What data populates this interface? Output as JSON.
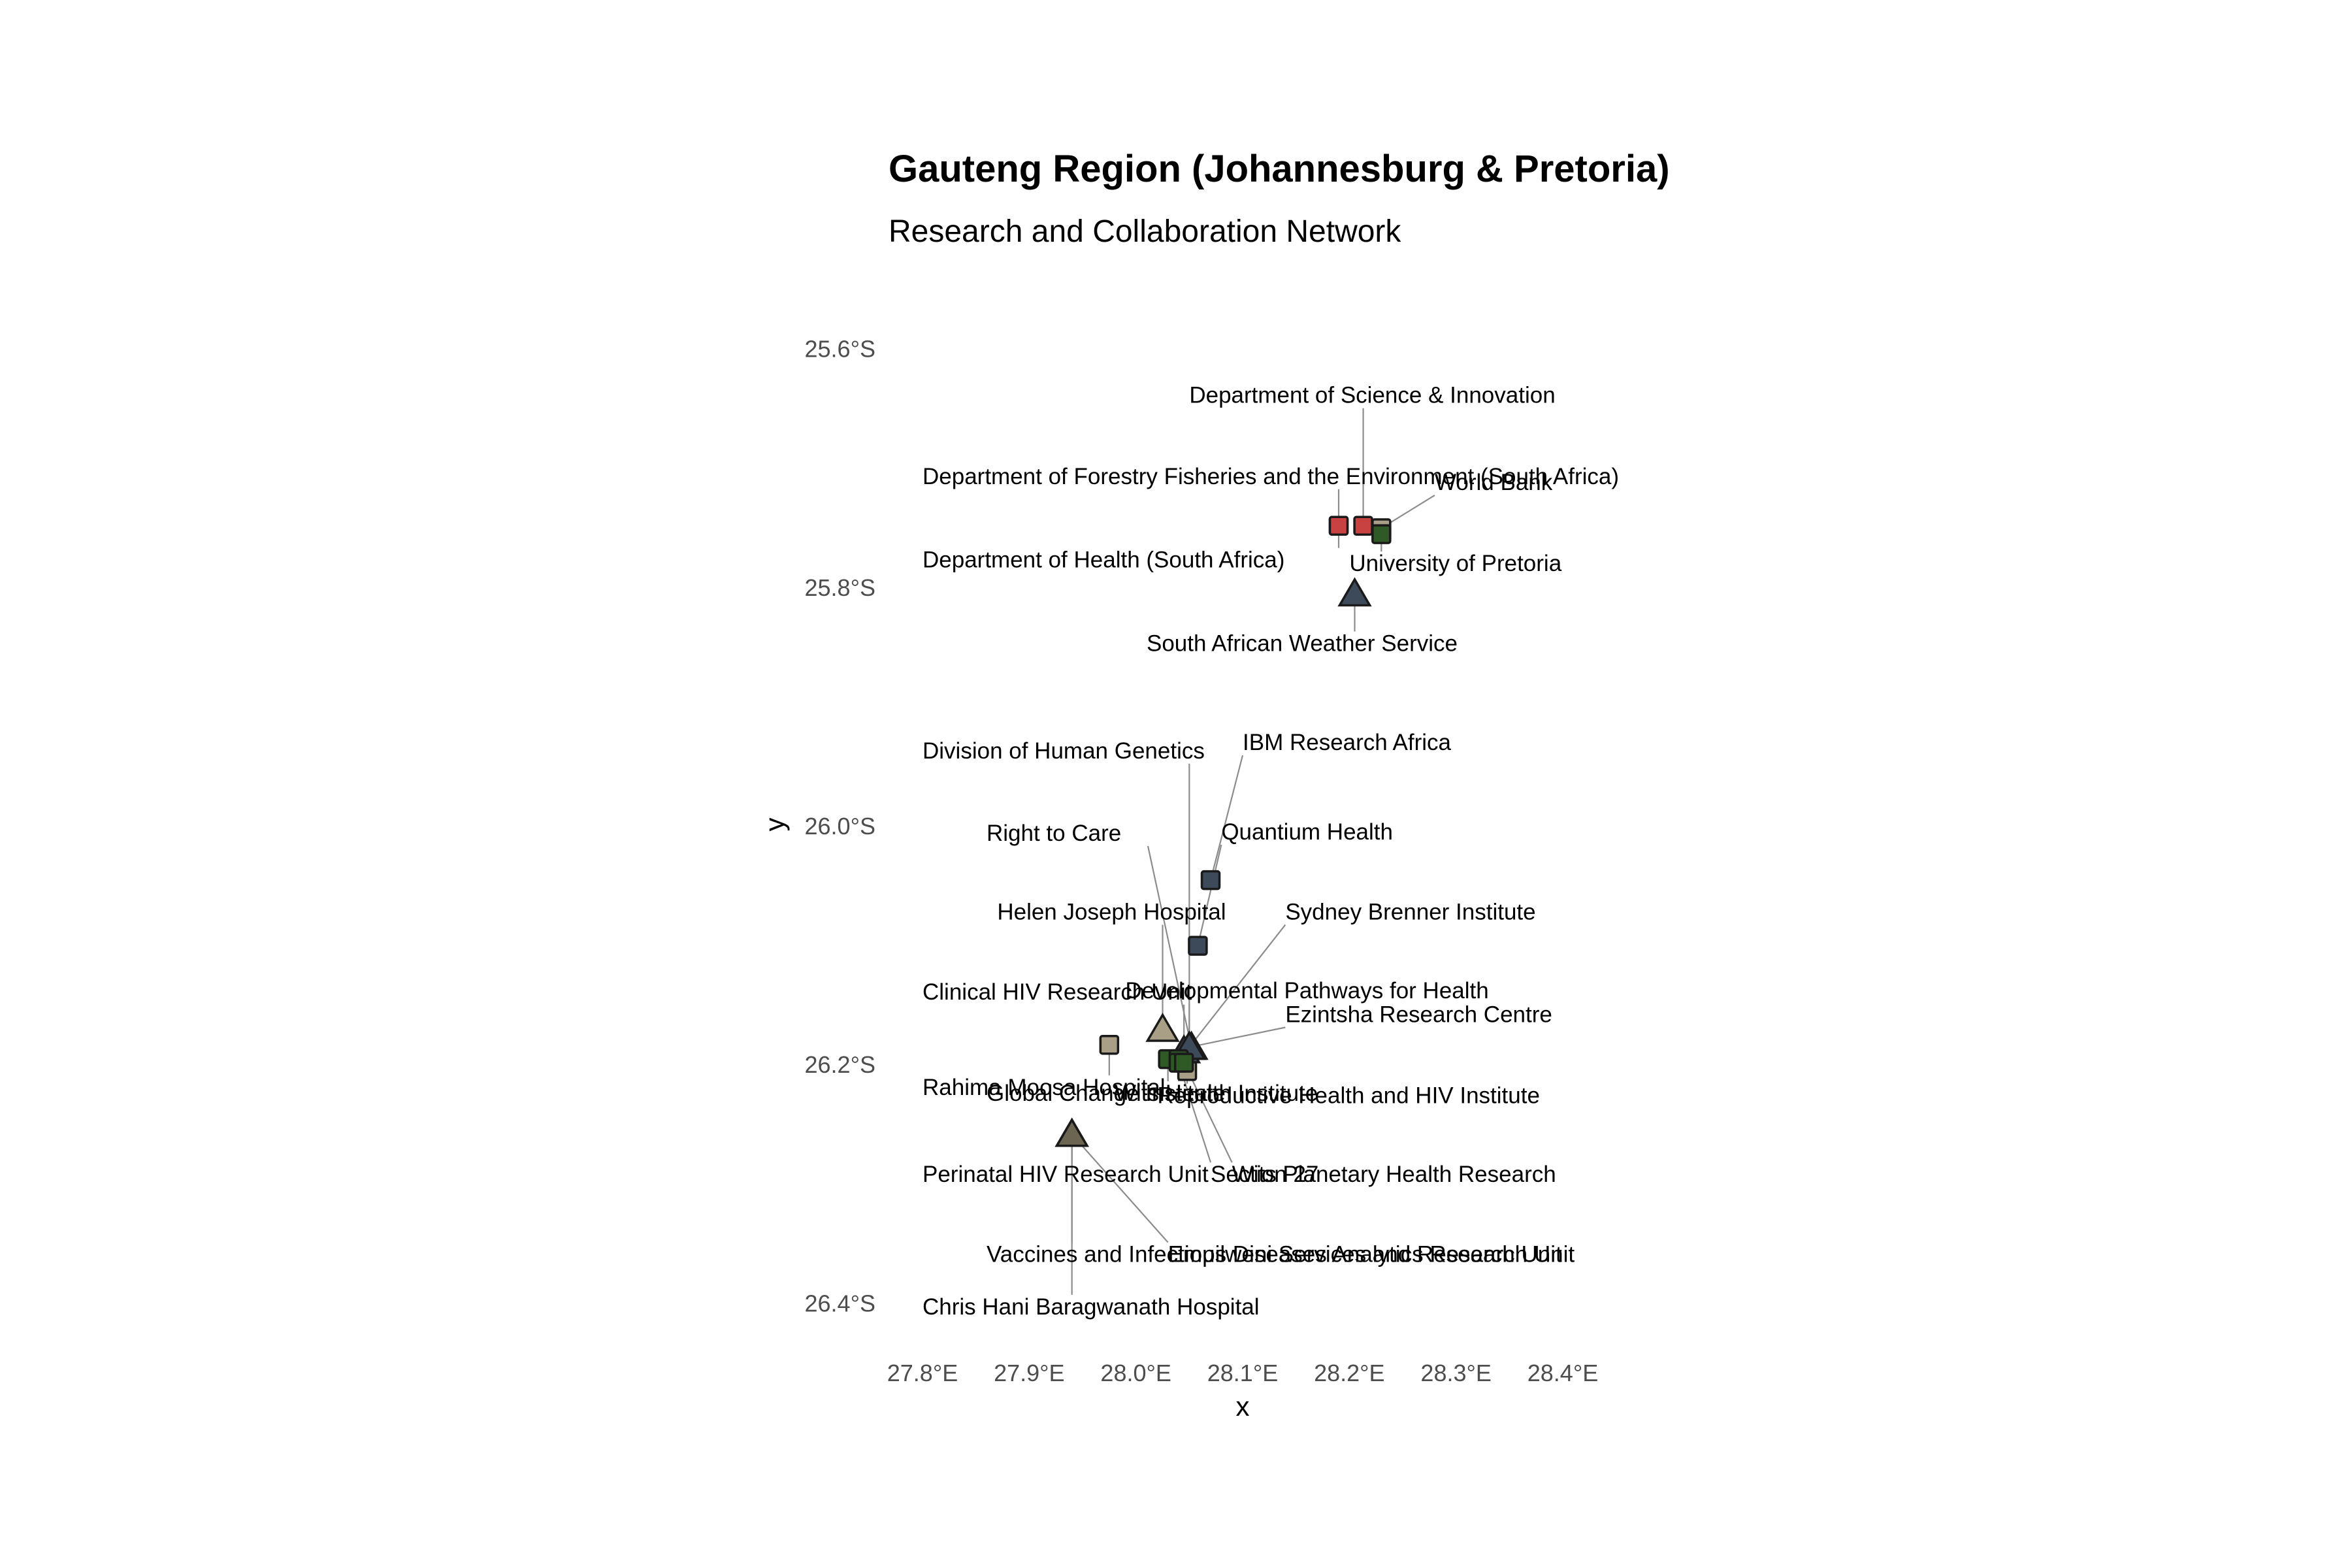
{
  "chart_data": {
    "type": "scatter",
    "title": "Gauteng Region (Johannesburg & Pretoria)",
    "subtitle": "Research and Collaboration Network",
    "xlabel": "x",
    "ylabel": "y",
    "xlim": [
      27.8,
      28.4
    ],
    "ylim": [
      -26.42,
      -25.58
    ],
    "x_ticks": [
      {
        "value": 27.8,
        "label": "27.8°E"
      },
      {
        "value": 27.9,
        "label": "27.9°E"
      },
      {
        "value": 28.0,
        "label": "28.0°E"
      },
      {
        "value": 28.1,
        "label": "28.1°E"
      },
      {
        "value": 28.2,
        "label": "28.2°E"
      },
      {
        "value": 28.3,
        "label": "28.3°E"
      },
      {
        "value": 28.4,
        "label": "28.4°E"
      }
    ],
    "y_ticks": [
      {
        "value": -25.6,
        "label": "25.6°S"
      },
      {
        "value": -25.8,
        "label": "25.8°S"
      },
      {
        "value": -26.0,
        "label": "26.0°S"
      },
      {
        "value": -26.2,
        "label": "26.2°S"
      },
      {
        "value": -26.4,
        "label": "26.4°S"
      }
    ],
    "grid": false,
    "legend": "none",
    "colors": {
      "red": "#c94242",
      "green": "#2f5a26",
      "khaki": "#a89f86",
      "slate": "#3d4a5a",
      "olive": "#6b6551"
    },
    "points": [
      {
        "name": "Department of Forestry Fisheries and the Environment (South Africa)",
        "x": 28.19,
        "y": -25.748,
        "shape": "square",
        "color": "#c94242",
        "label_x": 27.8,
        "label_y": -25.713
      },
      {
        "name": "Department of Science & Innovation",
        "x": 28.213,
        "y": -25.748,
        "shape": "square",
        "color": "#c94242",
        "label_x": 28.05,
        "label_y": -25.645
      },
      {
        "name": "Department of Health (South Africa)",
        "x": 28.19,
        "y": -25.748,
        "shape": "square",
        "color": "#c94242",
        "label_x": 27.8,
        "label_y": -25.783
      },
      {
        "name": "World Bank",
        "x": 28.23,
        "y": -25.75,
        "shape": "square",
        "color": "#a89f86",
        "label_x": 28.28,
        "label_y": -25.718
      },
      {
        "name": "University of Pretoria",
        "x": 28.23,
        "y": -25.755,
        "shape": "square",
        "color": "#2f5a26",
        "label_x": 28.2,
        "label_y": -25.786
      },
      {
        "name": "South African Weather Service",
        "x": 28.205,
        "y": -25.805,
        "shape": "triangle",
        "color": "#3d4a5a",
        "label_x": 28.01,
        "label_y": -25.853
      },
      {
        "name": "IBM Research Africa",
        "x": 28.07,
        "y": -26.045,
        "shape": "square",
        "color": "#3d4a5a",
        "label_x": 28.1,
        "label_y": -25.936
      },
      {
        "name": "Quantium Health",
        "x": 28.058,
        "y": -26.1,
        "shape": "square",
        "color": "#3d4a5a",
        "label_x": 28.08,
        "label_y": -26.011
      },
      {
        "name": "Division of Human Genetics",
        "x": 28.05,
        "y": -26.185,
        "shape": "triangle",
        "color": "#3d4a5a",
        "label_x": 27.8,
        "label_y": -25.943
      },
      {
        "name": "Right to Care",
        "x": 28.052,
        "y": -26.185,
        "shape": "triangle",
        "color": "#3d4a5a",
        "label_x": 27.86,
        "label_y": -26.012
      },
      {
        "name": "Helen Joseph Hospital",
        "x": 28.025,
        "y": -26.17,
        "shape": "triangle",
        "color": "#a89f86",
        "label_x": 27.87,
        "label_y": -26.078
      },
      {
        "name": "Sydney Brenner Institute",
        "x": 28.05,
        "y": -26.185,
        "shape": "triangle",
        "color": "#3d4a5a",
        "label_x": 28.14,
        "label_y": -26.078
      },
      {
        "name": "Developmental Pathways for Health",
        "x": 28.05,
        "y": -26.185,
        "shape": "triangle",
        "color": "#3d4a5a",
        "label_x": 27.99,
        "label_y": -26.144
      },
      {
        "name": "Clinical HIV Research Unit",
        "x": 28.045,
        "y": -26.188,
        "shape": "triangle",
        "color": "#3d4a5a",
        "label_x": 27.8,
        "label_y": -26.145
      },
      {
        "name": "Ezintsha Research Centre",
        "x": 28.05,
        "y": -26.185,
        "shape": "triangle",
        "color": "#3d4a5a",
        "label_x": 28.14,
        "label_y": -26.164
      },
      {
        "name": "Rahima Moosa Hospital",
        "x": 27.975,
        "y": -26.183,
        "shape": "square",
        "color": "#a89f86",
        "label_x": 27.8,
        "label_y": -26.225
      },
      {
        "name": "Global Change Institute",
        "x": 28.03,
        "y": -26.195,
        "shape": "square",
        "color": "#2f5a26",
        "label_x": 27.86,
        "label_y": -26.23
      },
      {
        "name": "Wits Health Institute",
        "x": 28.04,
        "y": -26.195,
        "shape": "square",
        "color": "#2f5a26",
        "label_x": 27.98,
        "label_y": -26.23
      },
      {
        "name": "Reproductive Health and HIV Institute",
        "x": 28.048,
        "y": -26.205,
        "shape": "square",
        "color": "#a89f86",
        "label_x": 28.02,
        "label_y": -26.232
      },
      {
        "name": "Perinatal HIV Research Unit",
        "x": 27.94,
        "y": -26.258,
        "shape": "triangle",
        "color": "#6b6551",
        "label_x": 27.8,
        "label_y": -26.298
      },
      {
        "name": "Section 27",
        "x": 28.04,
        "y": -26.198,
        "shape": "square",
        "color": "#2f5a26",
        "label_x": 28.07,
        "label_y": -26.298
      },
      {
        "name": "Wits Planetary Health Research",
        "x": 28.045,
        "y": -26.198,
        "shape": "square",
        "color": "#2f5a26",
        "label_x": 28.09,
        "label_y": -26.298
      },
      {
        "name": "Vaccines and Infectious Diseases Analytics Research Unit",
        "x": 27.94,
        "y": -26.258,
        "shape": "triangle",
        "color": "#6b6551",
        "label_x": 27.86,
        "label_y": -26.365
      },
      {
        "name": "Empilweni Services and Research Unit",
        "x": 27.94,
        "y": -26.258,
        "shape": "triangle",
        "color": "#6b6551",
        "label_x": 28.03,
        "label_y": -26.365
      },
      {
        "name": "Chris Hani Baragwanath Hospital",
        "x": 27.94,
        "y": -26.258,
        "shape": "triangle",
        "color": "#6b6551",
        "label_x": 27.8,
        "label_y": -26.409
      }
    ]
  }
}
